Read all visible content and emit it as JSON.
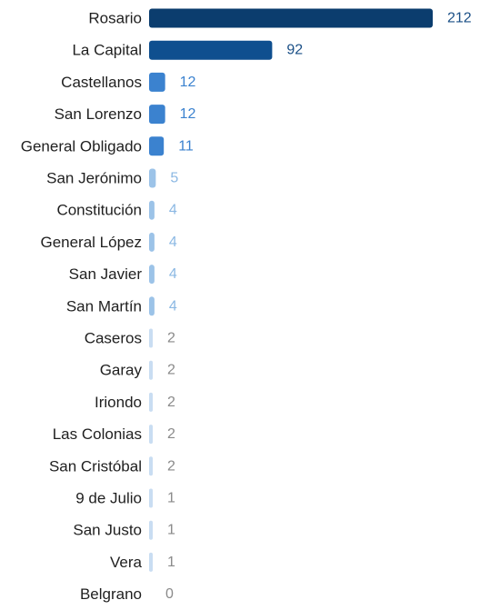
{
  "chart_data": {
    "type": "bar",
    "orientation": "horizontal",
    "title": "",
    "xlabel": "",
    "ylabel": "",
    "grid": false,
    "legend": "none",
    "xlim": [
      0,
      212
    ],
    "categories": [
      "Rosario",
      "La Capital",
      "Castellanos",
      "San Lorenzo",
      "General Obligado",
      "San Jerónimo",
      "Constitución",
      "General López",
      "San Javier",
      "San Martín",
      "Caseros",
      "Garay",
      "Iriondo",
      "Las Colonias",
      "San Cristóbal",
      "9 de Julio",
      "San Justo",
      "Vera",
      "Belgrano"
    ],
    "values": [
      212,
      92,
      12,
      12,
      11,
      5,
      4,
      4,
      4,
      4,
      2,
      2,
      2,
      2,
      2,
      1,
      1,
      1,
      0
    ],
    "colors": {
      "bar_high": "#0b3d6e",
      "bar_mid_high": "#0f4f8f",
      "bar_mid": "#3b82cf",
      "bar_low": "#9cc3e8",
      "bar_lowest": "#c9ddf2",
      "label_high": "#1a4f86",
      "label_mid": "#3b82cf",
      "label_low": "#8bb8e3",
      "label_gray": "#8a8a8a"
    }
  }
}
